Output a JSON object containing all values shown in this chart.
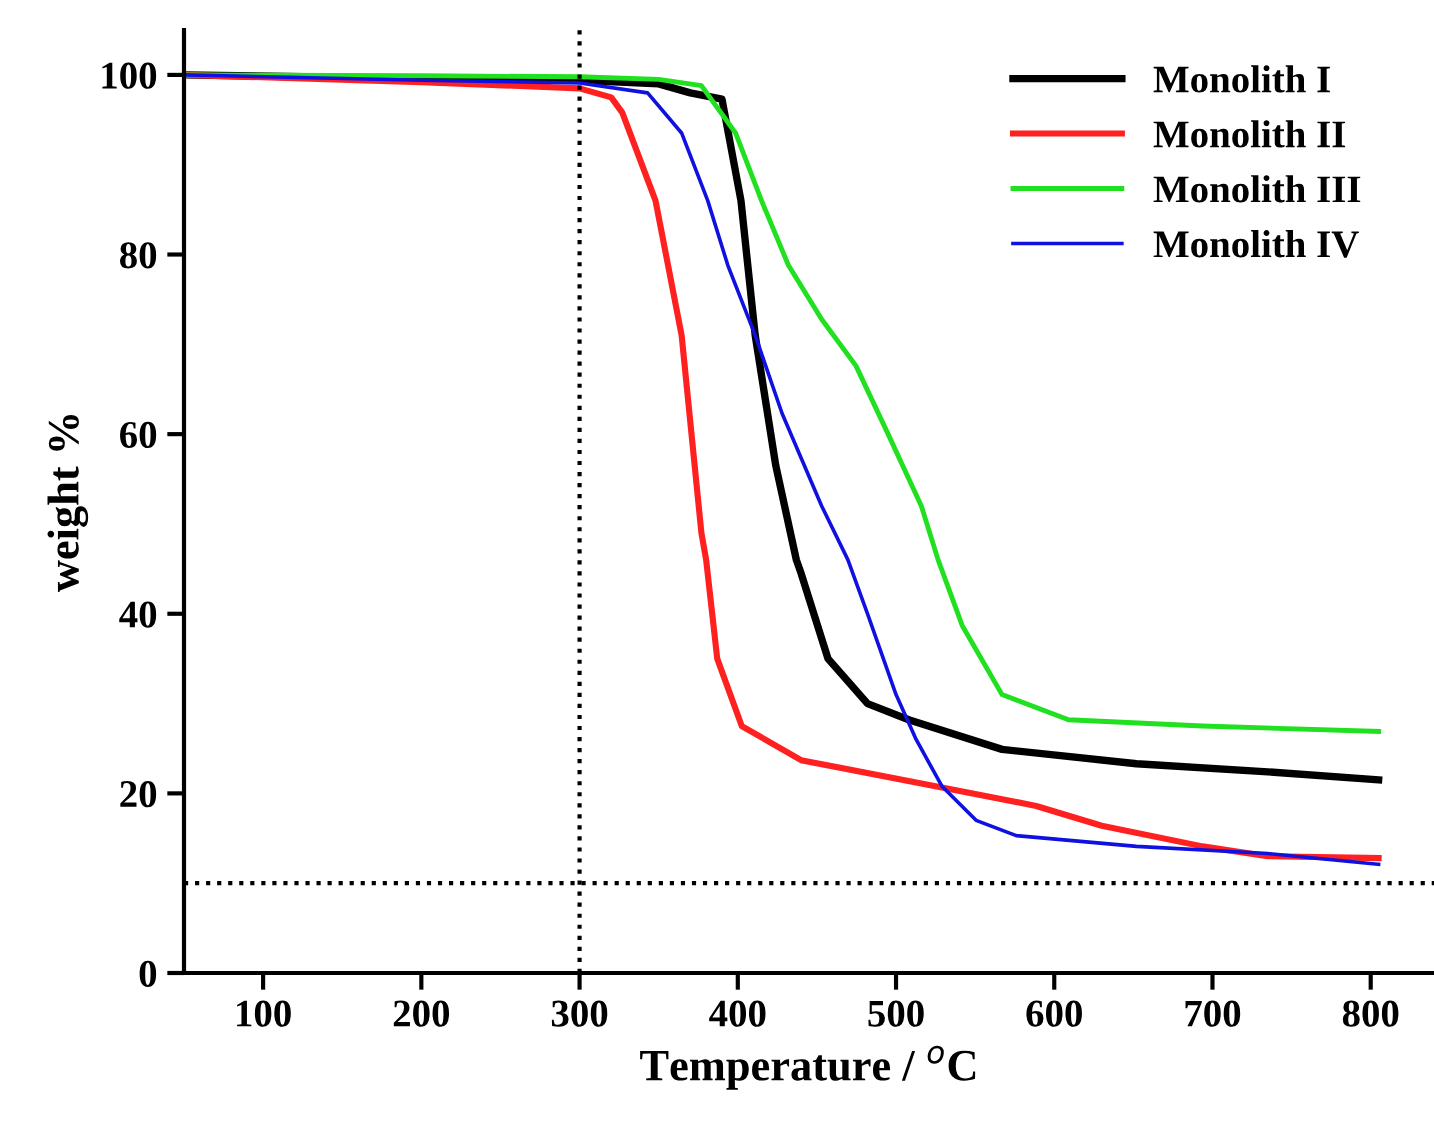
{
  "chart_data": {
    "type": "line",
    "xlabel": "Temperature / $^{o}$C",
    "ylabel": "weight %",
    "xlim": [
      50,
      840
    ],
    "ylim": [
      0,
      105
    ],
    "xticks": [
      100,
      200,
      300,
      400,
      500,
      600,
      700,
      800
    ],
    "yticks": [
      0,
      20,
      40,
      60,
      80,
      100
    ],
    "grid": false,
    "legend": "top right",
    "marker": "none",
    "line_style": "solid",
    "ref_lines": [
      {
        "axis": "x",
        "value": 300,
        "line_style": "dotted",
        "color": "#000000"
      },
      {
        "axis": "y",
        "value": 10,
        "line_style": "dotted",
        "color": "#000000"
      }
    ],
    "series": [
      {
        "name": "Monolith I",
        "color": "#000000",
        "x": [
          50,
          200,
          300,
          350,
          370,
          390,
          402,
          411,
          424,
          437,
          440,
          457,
          482,
          508,
          567,
          652,
          735,
          805
        ],
        "values": [
          100,
          99.6,
          99.4,
          99,
          98,
          97.3,
          86,
          71,
          56.5,
          46,
          44.5,
          35,
          30,
          28.2,
          24.9,
          23.3,
          22.4,
          21.5
        ]
      },
      {
        "name": "Monolith II",
        "color": "#ff2020",
        "x": [
          50,
          200,
          300,
          320,
          327,
          348,
          364.5,
          377,
          380,
          387,
          402.5,
          440,
          525,
          588.6,
          630,
          693.7,
          735,
          805
        ],
        "values": [
          100,
          99.2,
          98.5,
          97.5,
          95.8,
          86,
          71,
          49,
          46,
          35,
          27.5,
          23.7,
          20.8,
          18.6,
          16.4,
          14.1,
          13,
          12.8
        ]
      },
      {
        "name": "Monolith III",
        "color": "#20e020",
        "x": [
          50,
          200,
          300,
          350,
          377,
          398.7,
          415,
          432,
          453,
          474.7,
          495,
          516,
          526.6,
          541.8,
          567,
          609,
          693.7,
          805
        ],
        "values": [
          100,
          99.9,
          99.8,
          99.5,
          98.8,
          93.5,
          86,
          78.8,
          72.8,
          67.6,
          60,
          52,
          46,
          38.7,
          31,
          28.2,
          27.5,
          26.9
        ]
      },
      {
        "name": "Monolith IV",
        "color": "#1010e0",
        "x": [
          50,
          200,
          300,
          343,
          364.6,
          381,
          393.7,
          411,
          428,
          453,
          469.6,
          482,
          500,
          512.7,
          529,
          550.6,
          576,
          652,
          735,
          805
        ],
        "values": [
          100,
          99.4,
          99.1,
          98,
          93.5,
          86,
          78.8,
          71,
          62.3,
          52,
          46,
          40,
          31,
          26,
          20.8,
          17,
          15.3,
          14.1,
          13.3,
          12.1
        ]
      }
    ]
  }
}
